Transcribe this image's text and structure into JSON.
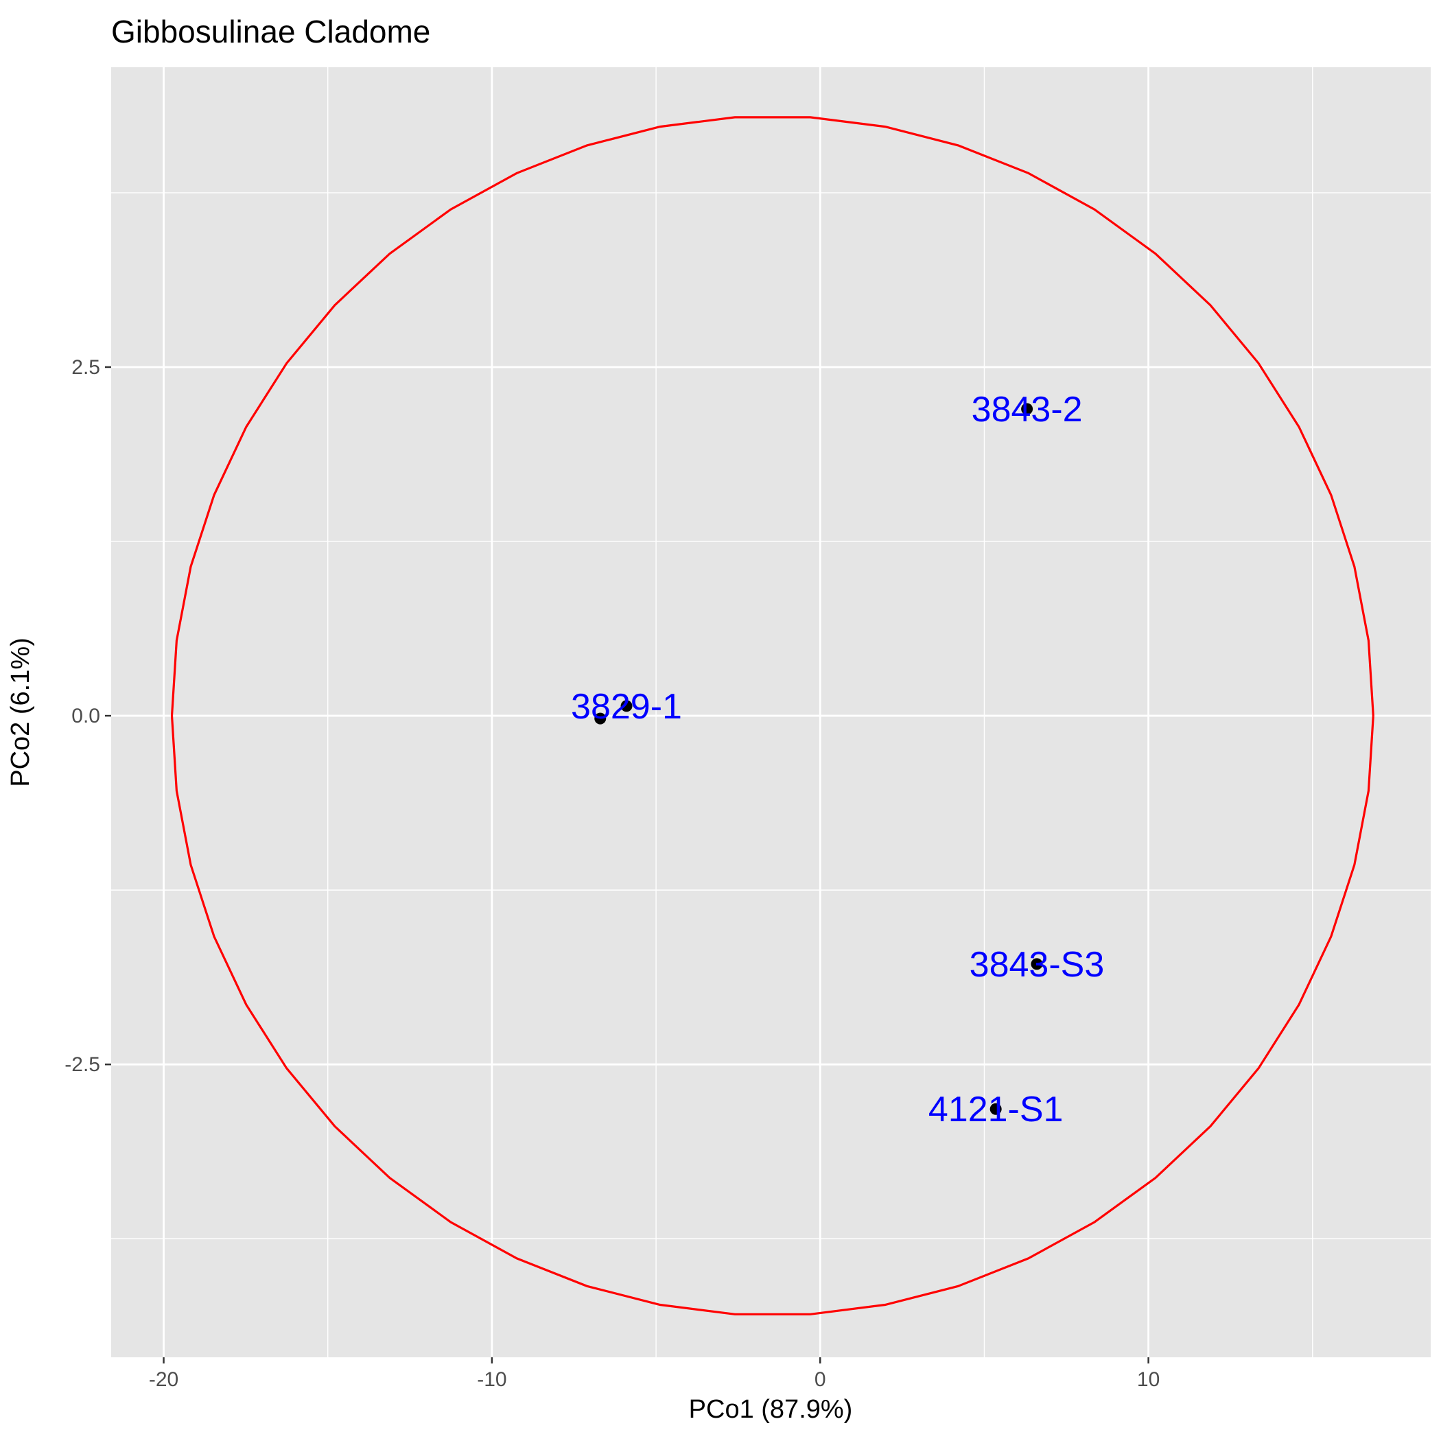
{
  "chart_data": {
    "type": "scatter",
    "title": "Gibbosulinae Cladome",
    "xlabel": "PCo1 (87.9%)",
    "ylabel": "PCo2 (6.1%)",
    "xlim": [
      -21.6,
      18.6
    ],
    "ylim": [
      -4.6,
      4.65
    ],
    "x_ticks": [
      -20,
      -10,
      0,
      10
    ],
    "x_tick_labels": [
      "-20",
      "-10",
      "0",
      "10"
    ],
    "x_minor_ticks": [
      -15,
      -5,
      5,
      15
    ],
    "y_ticks": [
      -2.5,
      0.0,
      2.5
    ],
    "y_tick_labels": [
      "-2.5",
      "0.0",
      "2.5"
    ],
    "y_minor_ticks": [
      -3.75,
      -1.25,
      1.25,
      3.75
    ],
    "grid": true,
    "panel_background": "#e5e5e5",
    "grid_color": "#ffffff",
    "point_color": "#000000",
    "label_color": "#0000ff",
    "circle_color": "#ff0000",
    "circle": {
      "center": [
        -1.45,
        0.0
      ],
      "rx": 18.3,
      "ry": 4.3
    },
    "points": [
      {
        "x": -6.7,
        "y": -0.02
      },
      {
        "x": -5.9,
        "y": 0.07
      },
      {
        "x": 6.3,
        "y": 2.2
      },
      {
        "x": 6.6,
        "y": -1.78
      },
      {
        "x": 5.35,
        "y": -2.82
      }
    ],
    "labels": [
      {
        "text": "3829-1",
        "x": -5.9,
        "y": 0.07
      },
      {
        "text": "3843-2",
        "x": 6.3,
        "y": 2.2
      },
      {
        "text": "3843-S3",
        "x": 6.6,
        "y": -1.78
      },
      {
        "text": "4121-S1",
        "x": 5.35,
        "y": -2.82
      }
    ]
  }
}
